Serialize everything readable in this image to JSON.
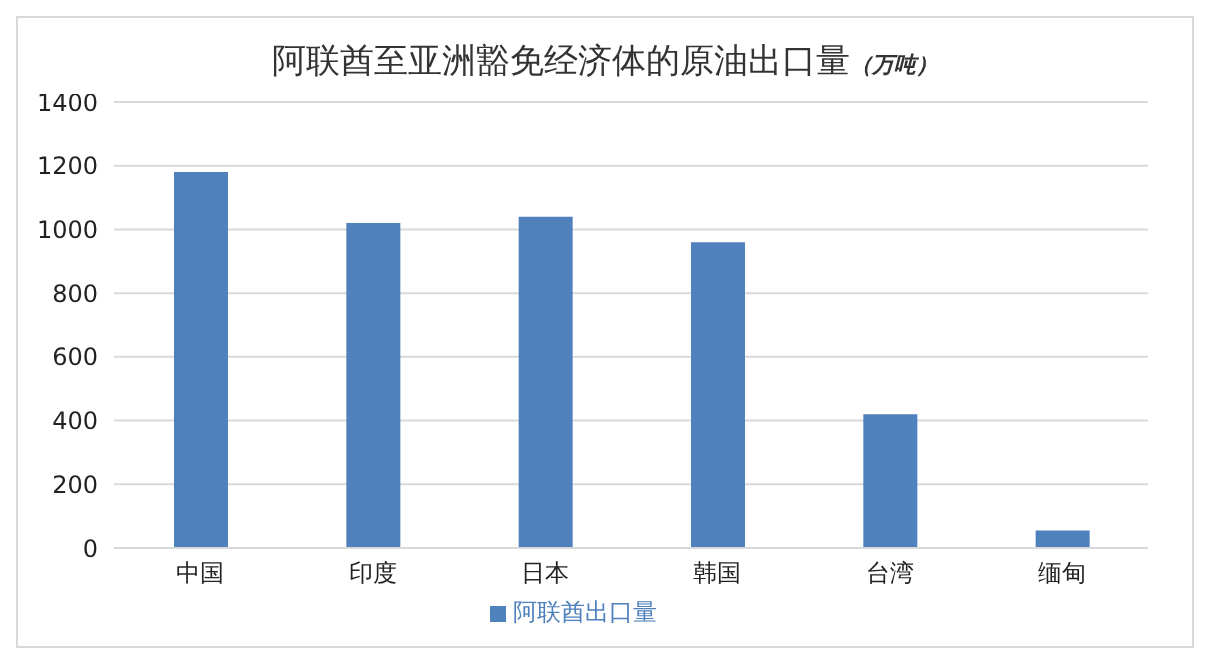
{
  "chart_data": {
    "type": "bar",
    "title": "阿联酋至亚洲豁免经济体的原油出口量",
    "subtitle": "（万吨）",
    "categories": [
      "中国",
      "印度",
      "日本",
      "韩国",
      "台湾",
      "缅甸"
    ],
    "series": [
      {
        "name": "阿联酋出口量",
        "color": "#4f81bd",
        "values": [
          1180,
          1020,
          1040,
          960,
          420,
          55
        ]
      }
    ],
    "ylim": [
      0,
      1400
    ],
    "yticks": [
      0,
      200,
      400,
      600,
      800,
      1000,
      1200,
      1400
    ],
    "grid": "y",
    "legend": "bottom"
  }
}
